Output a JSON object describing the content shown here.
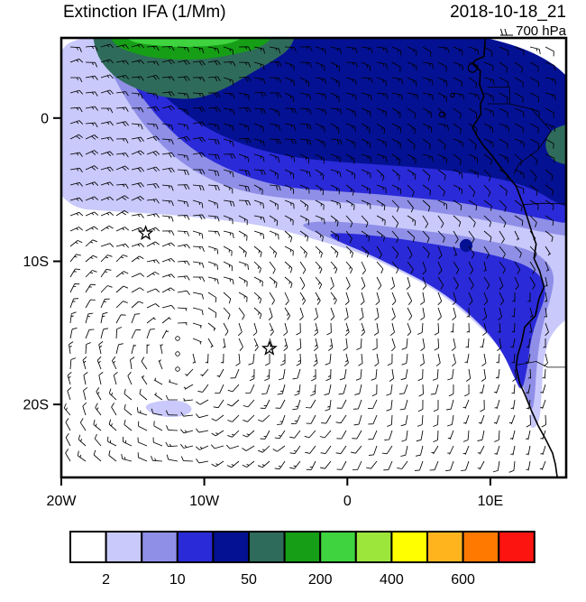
{
  "header": {
    "title": "Extinction IFA (1/Mm)",
    "datetime": "2018-10-18_21",
    "level": "700 hPa"
  },
  "axes": {
    "x_ticks": [
      {
        "lon": -20,
        "label": "20W"
      },
      {
        "lon": -10,
        "label": "10W"
      },
      {
        "lon": 0,
        "label": "0"
      },
      {
        "lon": 10,
        "label": "10E"
      }
    ],
    "y_ticks": [
      {
        "lat": 0,
        "label": "0"
      },
      {
        "lat": -10,
        "label": "10S"
      },
      {
        "lat": -20,
        "label": "20S"
      }
    ]
  },
  "chart_data": {
    "type": "heatmap",
    "title": "Extinction IFA (1/Mm)",
    "valid_time": "2018-10-18_21",
    "pressure_level": "700 hPa",
    "units": "1/Mm",
    "lon_range": [
      -20,
      15.3
    ],
    "lat_range": [
      -25.1,
      5.6
    ],
    "colorbar": {
      "levels": [
        2,
        5,
        10,
        25,
        50,
        100,
        200,
        300,
        400,
        500,
        600,
        700
      ],
      "labels": [
        "2",
        "10",
        "50",
        "200",
        "400",
        "600"
      ],
      "label_positions": [
        1,
        3,
        5,
        7,
        9,
        11
      ],
      "colors": [
        "#ffffff",
        "#c9c9fb",
        "#8f8fe8",
        "#2a2ad8",
        "#041193",
        "#2f6b5b",
        "#169e16",
        "#3fd43f",
        "#9ce63c",
        "#ffff00",
        "#ffb41e",
        "#ff7800",
        "#fb1410"
      ]
    },
    "markers": [
      {
        "type": "star",
        "lon": -14.1,
        "lat": -8.05
      },
      {
        "type": "star",
        "lon": -5.45,
        "lat": -16.1
      }
    ],
    "wind_field": {
      "gyre_center_lon": -11.5,
      "gyre_center_lat": -16.5,
      "spacing_px": 17
    },
    "regions": [
      {
        "name": "lavender-main",
        "level_index": 1,
        "points": [
          [
            -21,
            3.8
          ],
          [
            -18.3,
            6.4
          ],
          [
            16.5,
            6.4
          ],
          [
            16.5,
            -13.2
          ],
          [
            14.3,
            -14.8
          ],
          [
            13.7,
            -16.8
          ],
          [
            13.6,
            -19
          ],
          [
            13.45,
            -21.4
          ],
          [
            12.7,
            -21.8
          ],
          [
            12.9,
            -19.9
          ],
          [
            12.25,
            -18.2
          ],
          [
            11.2,
            -16.7
          ],
          [
            9.8,
            -15.1
          ],
          [
            8,
            -13.4
          ],
          [
            6,
            -11.9
          ],
          [
            3.5,
            -10.6
          ],
          [
            0.9,
            -9.4
          ],
          [
            -2.5,
            -8.4
          ],
          [
            -5.4,
            -7.6
          ],
          [
            -8,
            -7.2
          ],
          [
            -11.7,
            -6.8
          ],
          [
            -15,
            -6.6
          ],
          [
            -21,
            -6.2
          ]
        ]
      },
      {
        "name": "lavender-patch-20s",
        "level_index": 1,
        "points": [
          [
            -14.2,
            -20.05
          ],
          [
            -13.2,
            -19.75
          ],
          [
            -12,
            -19.7
          ],
          [
            -11.05,
            -19.95
          ],
          [
            -10.8,
            -20.45
          ],
          [
            -11.5,
            -20.85
          ],
          [
            -12.8,
            -20.9
          ],
          [
            -13.9,
            -20.55
          ]
        ]
      },
      {
        "name": "periwinkle-north",
        "level_index": 2,
        "points": [
          [
            -17.8,
            6.4
          ],
          [
            16.5,
            6.4
          ],
          [
            16.5,
            -8.4
          ],
          [
            13.8,
            -8
          ],
          [
            12,
            -7.6
          ],
          [
            9.5,
            -7.1
          ],
          [
            7,
            -6.7
          ],
          [
            4,
            -6.3
          ],
          [
            1,
            -6
          ],
          [
            -1.5,
            -5.8
          ],
          [
            -4.5,
            -5.6
          ],
          [
            -7,
            -5.2
          ],
          [
            -9.2,
            -4.5
          ],
          [
            -11.2,
            -3.4
          ],
          [
            -12.9,
            -2
          ],
          [
            -14.3,
            -0.4
          ],
          [
            -15.4,
            1.2
          ],
          [
            -16.3,
            2.8
          ],
          [
            -17,
            4.2
          ]
        ]
      },
      {
        "name": "periwinkle-plume",
        "level_index": 2,
        "points": [
          [
            -3.3,
            -7.4
          ],
          [
            -2,
            -7.2
          ],
          [
            0.5,
            -7.3
          ],
          [
            3,
            -7.6
          ],
          [
            5.5,
            -7.9
          ],
          [
            8,
            -8.2
          ],
          [
            10.5,
            -8.7
          ],
          [
            12.5,
            -9.1
          ],
          [
            13.8,
            -9.8
          ],
          [
            14.5,
            -10.9
          ],
          [
            14.3,
            -12.3
          ],
          [
            13.8,
            -13.9
          ],
          [
            13.4,
            -15.8
          ],
          [
            13.2,
            -17.8
          ],
          [
            13.1,
            -19.6
          ],
          [
            12.9,
            -20.6
          ],
          [
            12.35,
            -18.9
          ],
          [
            11.5,
            -17
          ],
          [
            10.2,
            -15.3
          ],
          [
            8.4,
            -13.6
          ],
          [
            6.4,
            -12
          ],
          [
            4,
            -10.7
          ],
          [
            1.5,
            -9.5
          ],
          [
            -0.9,
            -8.5
          ],
          [
            -2.7,
            -7.8
          ]
        ]
      },
      {
        "name": "blue-north",
        "level_index": 3,
        "points": [
          [
            -16.9,
            6.4
          ],
          [
            16.5,
            6.4
          ],
          [
            16.5,
            -7.6
          ],
          [
            13.5,
            -7
          ],
          [
            11,
            -6.5
          ],
          [
            8,
            -5.9
          ],
          [
            5,
            -5.6
          ],
          [
            2,
            -5.3
          ],
          [
            -1,
            -5.1
          ],
          [
            -3.8,
            -4.9
          ],
          [
            -6.2,
            -4.4
          ],
          [
            -8.3,
            -3.6
          ],
          [
            -10.2,
            -2.6
          ],
          [
            -11.8,
            -1.4
          ],
          [
            -13.2,
            0
          ],
          [
            -14.4,
            1.5
          ],
          [
            -15.4,
            3
          ],
          [
            -16.2,
            4.4
          ]
        ]
      },
      {
        "name": "blue-plume",
        "level_index": 3,
        "points": [
          [
            -1.5,
            -8
          ],
          [
            1,
            -8.1
          ],
          [
            3.5,
            -8.4
          ],
          [
            6,
            -8.8
          ],
          [
            8.5,
            -9.2
          ],
          [
            10.8,
            -9.7
          ],
          [
            12.6,
            -10.3
          ],
          [
            13.7,
            -11.2
          ],
          [
            13.9,
            -12.4
          ],
          [
            13.3,
            -13.9
          ],
          [
            12.8,
            -15.6
          ],
          [
            12.6,
            -17.4
          ],
          [
            12.2,
            -19.2
          ],
          [
            11.7,
            -18.2
          ],
          [
            10.9,
            -16.4
          ],
          [
            9.6,
            -14.7
          ],
          [
            7.9,
            -13.1
          ],
          [
            5.9,
            -11.7
          ],
          [
            3.6,
            -10.5
          ],
          [
            1.3,
            -9.4
          ],
          [
            -0.7,
            -8.6
          ]
        ]
      },
      {
        "name": "navy-top-band",
        "level_index": 4,
        "points": [
          [
            -16,
            6.4
          ],
          [
            16.5,
            6.4
          ],
          [
            16.5,
            -6.6
          ],
          [
            14.5,
            -5.9
          ],
          [
            13.5,
            -5.2
          ],
          [
            12,
            -4.6
          ],
          [
            10,
            -4.1
          ],
          [
            7.5,
            -3.7
          ],
          [
            4.5,
            -3.4
          ],
          [
            1.5,
            -3.2
          ],
          [
            -1.5,
            -3
          ],
          [
            -4,
            -2.7
          ],
          [
            -6.2,
            -2.2
          ],
          [
            -8.2,
            -1.5
          ],
          [
            -10,
            -0.6
          ],
          [
            -11.6,
            0.5
          ],
          [
            -13,
            1.7
          ],
          [
            -14.2,
            3
          ],
          [
            -15.2,
            4.3
          ]
        ]
      },
      {
        "name": "teal-top-band",
        "level_index": 5,
        "points": [
          [
            -17.9,
            6.4
          ],
          [
            -3.5,
            6.4
          ],
          [
            -3.9,
            4.9
          ],
          [
            -5.2,
            4
          ],
          [
            -6.8,
            3.1
          ],
          [
            -8.6,
            2
          ],
          [
            -10.6,
            1.3
          ],
          [
            -12.6,
            1.4
          ],
          [
            -14.4,
            1.9
          ],
          [
            -15.9,
            2.6
          ],
          [
            -16.9,
            3.5
          ],
          [
            -17.6,
            4.6
          ]
        ]
      },
      {
        "name": "green-top-band",
        "level_index": 6,
        "points": [
          [
            -17,
            6.4
          ],
          [
            -4.6,
            6.4
          ],
          [
            -5.8,
            5
          ],
          [
            -7.6,
            4.5
          ],
          [
            -9.6,
            4.15
          ],
          [
            -11.6,
            4.05
          ],
          [
            -13.6,
            4.2
          ],
          [
            -15.2,
            4.6
          ],
          [
            -16.3,
            5.1
          ]
        ]
      },
      {
        "name": "bright-green-top",
        "level_index": 7,
        "points": [
          [
            -16.2,
            6.4
          ],
          [
            -6.2,
            6.4
          ],
          [
            -7.8,
            5.25
          ],
          [
            -9.8,
            5
          ],
          [
            -11.8,
            4.95
          ],
          [
            -13.8,
            5.1
          ],
          [
            -15.3,
            5.35
          ]
        ]
      },
      {
        "name": "teal-coast-equator",
        "level_index": 5,
        "points": [
          [
            16.5,
            -0.2
          ],
          [
            14.6,
            -0.6
          ],
          [
            14,
            -1.2
          ],
          [
            13.8,
            -2
          ],
          [
            14.2,
            -2.8
          ],
          [
            14.9,
            -3.2
          ],
          [
            16.5,
            -3.4
          ]
        ]
      },
      {
        "name": "navy-spot-plume",
        "level_index": 4,
        "circle": [
          8.3,
          -8.9,
          0.45
        ]
      }
    ],
    "coastline": [
      [
        9.7,
        6.4
      ],
      [
        9.55,
        4.3
      ],
      [
        8.95,
        4.05
      ],
      [
        8.75,
        3.8
      ],
      [
        9.3,
        3.3
      ],
      [
        9.25,
        2.3
      ],
      [
        9.55,
        1.5
      ],
      [
        9.3,
        1
      ],
      [
        9.35,
        0.3
      ],
      [
        8.75,
        -0.65
      ],
      [
        9.1,
        -1.3
      ],
      [
        9.5,
        -1.9
      ],
      [
        10.1,
        -2.6
      ],
      [
        10.8,
        -3.55
      ],
      [
        11.8,
        -4.75
      ],
      [
        12.3,
        -6.05
      ],
      [
        12.6,
        -7
      ],
      [
        12.85,
        -7.8
      ],
      [
        13.2,
        -8.8
      ],
      [
        13.05,
        -9.8
      ],
      [
        13.45,
        -10.7
      ],
      [
        13.75,
        -11.8
      ],
      [
        13.4,
        -12.6
      ],
      [
        13.15,
        -13.8
      ],
      [
        12.4,
        -14.6
      ],
      [
        12.2,
        -15.6
      ],
      [
        11.9,
        -16.6
      ],
      [
        11.8,
        -17.4
      ],
      [
        12.05,
        -18.5
      ],
      [
        12.45,
        -19.4
      ],
      [
        12.9,
        -20.5
      ],
      [
        13.35,
        -21.5
      ],
      [
        13.9,
        -22.5
      ],
      [
        14.35,
        -23.4
      ],
      [
        14.55,
        -24.2
      ],
      [
        14.8,
        -26
      ]
    ],
    "borders": [
      [
        [
          9.8,
          2.17
        ],
        [
          11.35,
          2.17
        ],
        [
          11.35,
          1
        ],
        [
          9.8,
          1
        ]
      ],
      [
        [
          11.35,
          1
        ],
        [
          12.9,
          0.62
        ],
        [
          14.25,
          -0.9
        ],
        [
          13.35,
          -2.2
        ],
        [
          12,
          -3.2
        ],
        [
          11.65,
          -3.9
        ]
      ],
      [
        [
          12.3,
          -6.05
        ],
        [
          13.6,
          -5.95
        ],
        [
          15.3,
          -6
        ]
      ],
      [
        [
          11.8,
          -17.25
        ],
        [
          13.2,
          -17
        ],
        [
          14,
          -17.4
        ],
        [
          15.3,
          -17.4
        ]
      ]
    ],
    "islands": [
      [
        8.75,
        3.5,
        0.3
      ],
      [
        7.35,
        1.6,
        0.13
      ],
      [
        6.6,
        0.25,
        0.17
      ]
    ]
  }
}
